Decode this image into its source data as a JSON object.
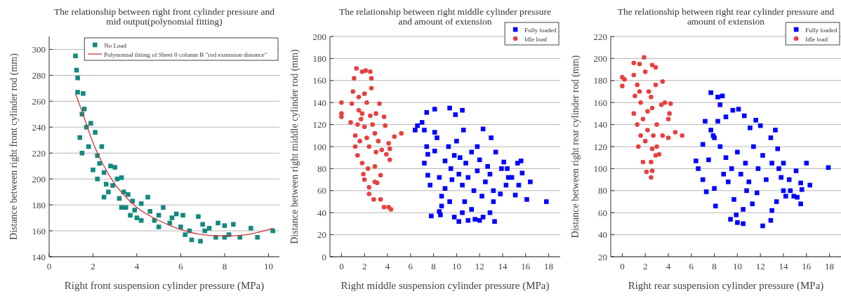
{
  "chart_data": [
    {
      "type": "scatter",
      "title": "The relationship between right front cylinder pressure and mid output(polynomial fitting)",
      "xlabel": "Right front suspension cylinder pressure (MPa)",
      "ylabel": "Distance between right front cylinder rod (mm)",
      "xlim": [
        0,
        10.5
      ],
      "xticks": [
        0,
        2,
        4,
        6,
        8,
        10
      ],
      "ylim": [
        140,
        310
      ],
      "yticks": [
        140,
        160,
        180,
        200,
        220,
        240,
        260,
        280,
        300
      ],
      "grid": "y",
      "legend": "top right",
      "series": [
        {
          "name": "No Load",
          "color": "#138a80",
          "marker": "square",
          "x": [
            1.2,
            1.25,
            1.3,
            1.3,
            1.55,
            1.5,
            1.6,
            1.4,
            1.5,
            1.7,
            1.9,
            1.8,
            2.0,
            2.1,
            2.2,
            2.3,
            2.4,
            2.5,
            2.6,
            2.5,
            2.8,
            2.9,
            3.0,
            3.1,
            3.2,
            3.3,
            3.4,
            3.5,
            3.6,
            3.8,
            3.9,
            4.0,
            4.2,
            4.5,
            4.6,
            4.8,
            5.0,
            5.2,
            5.5,
            5.6,
            5.8,
            6.0,
            6.1,
            6.2,
            6.4,
            6.5,
            6.8,
            6.9,
            7.0,
            7.1,
            7.3,
            7.6,
            7.7,
            8.0,
            8.0,
            8.2,
            8.4,
            8.7,
            9.2,
            9.5,
            10.2,
            2.2,
            2.7,
            3.3,
            4.2,
            5.0,
            3.7
          ],
          "values": [
            295,
            284,
            278,
            267,
            266,
            250,
            254,
            232,
            220,
            240,
            243,
            225,
            207,
            236,
            218,
            212,
            225,
            205,
            196,
            186,
            210,
            195,
            209,
            200,
            185,
            201,
            190,
            178,
            188,
            183,
            176,
            170,
            181,
            186,
            175,
            168,
            172,
            178,
            166,
            170,
            173,
            163,
            172,
            157,
            160,
            153,
            171,
            152,
            165,
            160,
            162,
            155,
            166,
            155,
            164,
            157,
            165,
            155,
            162,
            155,
            160,
            200,
            190,
            178,
            168,
            163,
            172
          ]
        },
        {
          "name": "Polynomial fitting of Sheet 0 column B \"rod extension distance\"",
          "type": "line",
          "color": "#d0343a",
          "marker": "none",
          "x": [
            1.2,
            1.5,
            2,
            2.5,
            3,
            3.5,
            4,
            5,
            6,
            7,
            8,
            9,
            10.2
          ],
          "values": [
            266,
            252,
            228,
            210,
            196,
            186,
            178,
            168,
            161,
            157,
            156,
            157,
            162
          ]
        }
      ]
    },
    {
      "type": "scatter",
      "title": "The relationship between right middle cylinder pressure  and amount of extension",
      "xlabel": "Right middle suspension cylinder pressure (MPa)",
      "ylabel": "Distance between right middle cylinder rod (mm)",
      "xlim": [
        -1,
        19
      ],
      "xticks": [
        0,
        2,
        4,
        6,
        8,
        10,
        12,
        14,
        16,
        18
      ],
      "ylim": [
        0,
        200
      ],
      "yticks": [
        0,
        20,
        40,
        60,
        80,
        100,
        120,
        140,
        160,
        180,
        200
      ],
      "grid": "y",
      "legend": "top right",
      "series": [
        {
          "name": "Fully loaded",
          "color": "#0000ff",
          "marker": "square",
          "x": [
            6.4,
            6.6,
            7.0,
            7.2,
            7.4,
            8.1,
            9.4,
            9.9,
            10.5,
            8.1,
            10.6,
            12.3,
            13.0,
            7.4,
            7.5,
            7.2,
            7.5,
            7.7,
            7.8,
            8.1,
            8.3,
            8.5,
            8.7,
            8.6,
            8.7,
            9.0,
            9.3,
            9.5,
            9.8,
            10.0,
            10.2,
            10.5,
            10.8,
            11.0,
            11.3,
            11.5,
            11.8,
            12.0,
            12.2,
            12.5,
            12.7,
            12.9,
            13.2,
            13.4,
            13.2,
            12.9,
            13.3,
            12.3,
            12.0,
            11.6,
            11.0,
            10.2,
            9.8,
            10.5,
            11.3,
            10.7,
            9.4,
            13.8,
            13.9,
            14.1,
            14.4,
            14.5,
            14.8,
            14.3,
            15.1,
            15.3,
            15.6,
            15.4,
            16.1,
            15.7,
            16.4,
            17.8,
            8.5,
            9.0,
            11.8,
            10.3,
            9.6
          ],
          "values": [
            115,
            119,
            122,
            115,
            131,
            134,
            135,
            129,
            133,
            113,
            115,
            116,
            108,
            100,
            93,
            85,
            74,
            65,
            37,
            96,
            108,
            41,
            46,
            38,
            55,
            87,
            100,
            80,
            92,
            105,
            75,
            65,
            85,
            72,
            95,
            60,
            78,
            88,
            55,
            68,
            82,
            75,
            60,
            95,
            50,
            40,
            32,
            36,
            33,
            34,
            33,
            32,
            36,
            40,
            43,
            50,
            50,
            57,
            80,
            86,
            80,
            72,
            72,
            65,
            56,
            85,
            87,
            65,
            52,
            76,
            68,
            50,
            72,
            62,
            100,
            90,
            70
          ]
        },
        {
          "name": "Idle load",
          "color": "#e84040",
          "marker": "circle",
          "x": [
            0,
            0,
            0,
            1.3,
            1.1,
            1.8,
            2.1,
            2.5,
            2.6,
            2.6,
            1.0,
            1.5,
            0.9,
            3.3,
            2.2,
            1.8,
            2.5,
            0.8,
            1.4,
            2.0,
            3.7,
            3.8,
            1.2,
            2.9,
            1.6,
            2.4,
            3.0,
            4.1,
            4.2,
            4.6,
            5.2,
            3.5,
            3.9,
            1.4,
            1.8,
            2.3,
            2.9,
            4.2,
            1.9,
            2.0,
            3.4,
            2.4,
            2.4,
            2.9,
            3.1,
            2.8,
            3.4,
            3.7,
            4.1,
            4.3,
            1.7,
            2.2,
            2.7,
            1.5,
            2.0,
            3.0,
            1.2,
            3.2
          ],
          "values": [
            140,
            130,
            127,
            171,
            162,
            168,
            169,
            168,
            162,
            153,
            150,
            145,
            139,
            139,
            140,
            130,
            128,
            122,
            120,
            118,
            127,
            119,
            110,
            112,
            105,
            100,
            95,
            103,
            98,
            109,
            112,
            97,
            93,
            92,
            85,
            80,
            82,
            88,
            75,
            70,
            74,
            63,
            57,
            68,
            67,
            52,
            52,
            45,
            45,
            43,
            125,
            108,
            120,
            133,
            148,
            130,
            100,
            105
          ]
        }
      ]
    },
    {
      "type": "scatter",
      "title": "The relationship between right rear cylinder pressure  and amount of extension",
      "xlabel": "Right rear suspension cylinder pressure (MPa)",
      "ylabel": "Distance between right rear cylinder rod (mm)",
      "xlim": [
        -1,
        19
      ],
      "xticks": [
        0,
        2,
        4,
        6,
        8,
        10,
        12,
        14,
        16,
        18
      ],
      "ylim": [
        20,
        220
      ],
      "yticks": [
        20,
        40,
        60,
        80,
        100,
        120,
        140,
        160,
        180,
        200,
        220
      ],
      "grid": "y",
      "legend": "top right",
      "series": [
        {
          "name": "Fully loaded",
          "color": "#0000ff",
          "marker": "square",
          "x": [
            7.7,
            8.3,
            8.7,
            8.5,
            9.6,
            10.1,
            10.6,
            11.6,
            12.0,
            11.1,
            13.3,
            7.2,
            7.7,
            8.3,
            9.0,
            7.9,
            8.0,
            7.0,
            6.4,
            6.6,
            7.0,
            7.3,
            8.0,
            8.1,
            7.5,
            8.5,
            9.0,
            9.5,
            10.0,
            10.3,
            10.7,
            11.0,
            11.4,
            11.8,
            12.2,
            12.5,
            12.9,
            13.0,
            13.5,
            13.6,
            13.8,
            9.4,
            9.9,
            10.0,
            10.5,
            12.2,
            12.9,
            13.0,
            10.5,
            9.7,
            11.3,
            11.7,
            13.4,
            14.0,
            14.2,
            14.6,
            14.9,
            15.2,
            15.5,
            15.1,
            15.5,
            15.6,
            16.0,
            16.3,
            17.9,
            14.5,
            14.0,
            9.2,
            8.8,
            10.8
          ],
          "values": [
            169,
            165,
            166,
            158,
            153,
            154,
            148,
            144,
            139,
            137,
            135,
            143,
            135,
            143,
            147,
            130,
            128,
            122,
            107,
            100,
            90,
            79,
            82,
            66,
            108,
            120,
            110,
            100,
            115,
            95,
            105,
            88,
            120,
            100,
            112,
            90,
            128,
            105,
            118,
            100,
            92,
            54,
            58,
            51,
            50,
            48,
            53,
            62,
            63,
            72,
            68,
            78,
            70,
            80,
            75,
            80,
            75,
            74,
            68,
            98,
            87,
            81,
            105,
            85,
            101,
            90,
            105,
            88,
            95,
            80
          ]
        },
        {
          "name": "Idle load",
          "color": "#e84040",
          "marker": "circle",
          "x": [
            0,
            0,
            0.2,
            1.0,
            1.5,
            1.9,
            2.6,
            2.9,
            1.0,
            1.3,
            2.0,
            2.3,
            1.1,
            1.6,
            2.5,
            2.9,
            3.5,
            1.0,
            1.8,
            2.6,
            3.4,
            3.7,
            4.2,
            4.1,
            4.0,
            1.3,
            2.2,
            3.0,
            3.5,
            4.0,
            4.6,
            5.2,
            1.4,
            2.0,
            2.6,
            3.2,
            2.9,
            1.8,
            2.5,
            2.6,
            2.1,
            2.5,
            1.5,
            2.2,
            2.7,
            1.6,
            3.0
          ],
          "values": [
            183,
            175,
            181,
            196,
            195,
            201,
            194,
            192,
            185,
            176,
            188,
            170,
            166,
            160,
            165,
            176,
            179,
            150,
            145,
            155,
            158,
            160,
            159,
            150,
            145,
            140,
            135,
            140,
            130,
            128,
            133,
            130,
            120,
            125,
            118,
            113,
            112,
            106,
            106,
            98,
            97,
            92,
            170,
            152,
            130,
            130,
            120
          ]
        }
      ]
    }
  ]
}
